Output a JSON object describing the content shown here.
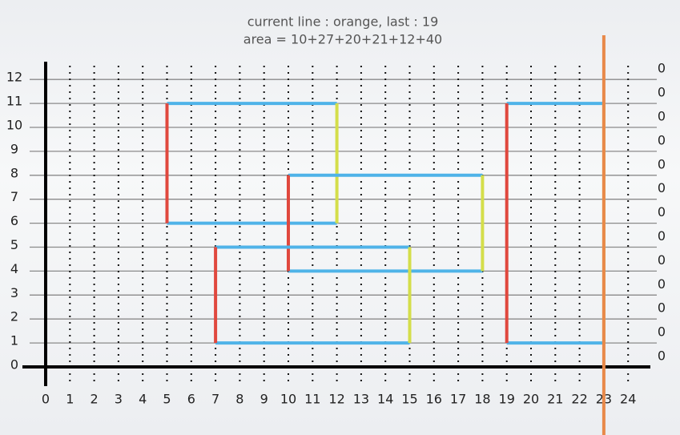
{
  "header": {
    "title": "current line : orange, last : 19",
    "subtitle": "area = 10+27+20+21+12+40"
  },
  "grid": {
    "xticks": [
      0,
      1,
      2,
      3,
      4,
      5,
      6,
      7,
      8,
      9,
      10,
      11,
      12,
      13,
      14,
      15,
      16,
      17,
      18,
      19,
      20,
      21,
      22,
      23,
      24
    ],
    "yticks": [
      0,
      1,
      2,
      3,
      4,
      5,
      6,
      7,
      8,
      9,
      10,
      11,
      12
    ]
  },
  "rectangles": [
    {
      "x1": 5,
      "y1": 6,
      "x2": 12,
      "y2": 11
    },
    {
      "x1": 10,
      "y1": 4,
      "x2": 18,
      "y2": 8
    },
    {
      "x1": 7,
      "y1": 1,
      "x2": 15,
      "y2": 5
    },
    {
      "x1": 19,
      "y1": 1,
      "x2": 23,
      "y2": 11
    }
  ],
  "sweep": {
    "x": 23,
    "color": "#e8894a"
  },
  "counters": [
    0,
    0,
    0,
    0,
    0,
    0,
    0,
    0,
    0,
    0,
    0,
    0,
    0
  ]
}
